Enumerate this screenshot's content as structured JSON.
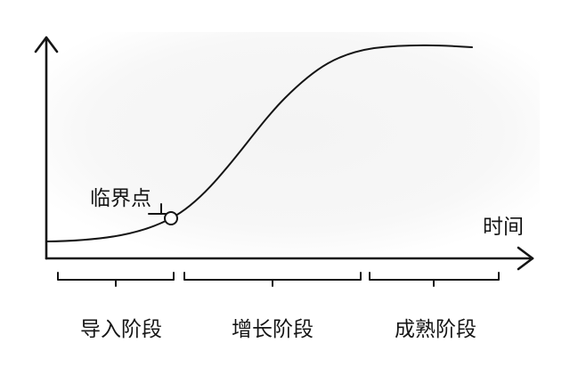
{
  "axis": {
    "x_label": "时间"
  },
  "threshold": {
    "label": "临界点"
  },
  "stages": [
    {
      "label": "导入阶段"
    },
    {
      "label": "增长阶段"
    },
    {
      "label": "成熟阶段"
    }
  ]
}
